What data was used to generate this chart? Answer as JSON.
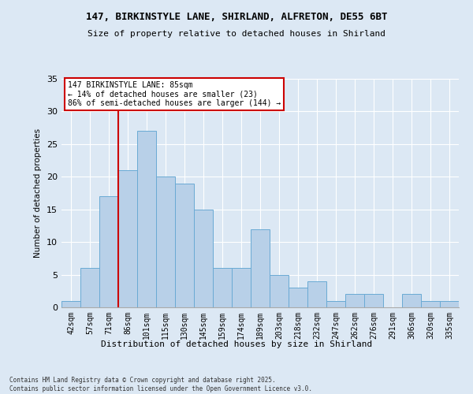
{
  "title1": "147, BIRKINSTYLE LANE, SHIRLAND, ALFRETON, DE55 6BT",
  "title2": "Size of property relative to detached houses in Shirland",
  "xlabel": "Distribution of detached houses by size in Shirland",
  "ylabel": "Number of detached properties",
  "bar_labels": [
    "42sqm",
    "57sqm",
    "71sqm",
    "86sqm",
    "101sqm",
    "115sqm",
    "130sqm",
    "145sqm",
    "159sqm",
    "174sqm",
    "189sqm",
    "203sqm",
    "218sqm",
    "232sqm",
    "247sqm",
    "262sqm",
    "276sqm",
    "291sqm",
    "306sqm",
    "320sqm",
    "335sqm"
  ],
  "bar_values": [
    1,
    6,
    17,
    21,
    27,
    20,
    19,
    15,
    6,
    6,
    12,
    5,
    3,
    4,
    1,
    2,
    2,
    0,
    2,
    1,
    1
  ],
  "bar_color": "#b8d0e8",
  "bar_edge_color": "#6aaad4",
  "vline_x_index": 3,
  "vline_color": "#cc0000",
  "annotation_text": "147 BIRKINSTYLE LANE: 85sqm\n← 14% of detached houses are smaller (23)\n86% of semi-detached houses are larger (144) →",
  "annotation_box_color": "#ffffff",
  "annotation_box_edge": "#cc0000",
  "bg_color": "#dce8f4",
  "plot_bg": "#dce8f4",
  "footer": "Contains HM Land Registry data © Crown copyright and database right 2025.\nContains public sector information licensed under the Open Government Licence v3.0.",
  "ylim": [
    0,
    35
  ],
  "yticks": [
    0,
    5,
    10,
    15,
    20,
    25,
    30,
    35
  ],
  "grid_color": "#ffffff"
}
